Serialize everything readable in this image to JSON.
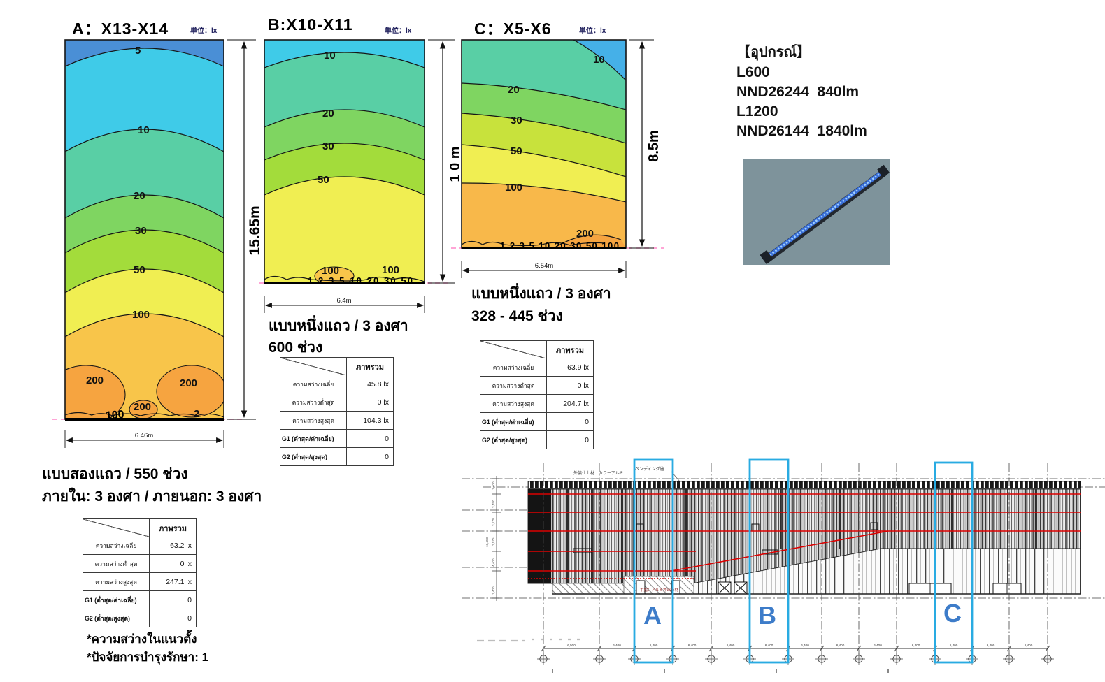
{
  "panels": {
    "a": {
      "title": "A：X13-X14",
      "unit": "単位：lx",
      "height_label": "15.65m",
      "width_label": "6.46m",
      "labels": {
        "c5": "5",
        "c10": "10",
        "c20": "20",
        "c30": "30",
        "c50": "50",
        "c100": "100",
        "b200_left": "200",
        "b200_right": "200",
        "b200_mid": "200",
        "floor_smudge": "100",
        "floor_right": "2"
      }
    },
    "b": {
      "title": "B:X10-X11",
      "unit": "単位：lx",
      "height_label": "1 0 m",
      "width_label": "6.4m",
      "labels": {
        "c10": "10",
        "c20": "20",
        "c30": "30",
        "c50": "50",
        "b100": "100",
        "r100": "100",
        "floor": "1 2 3 5 10 20 30 50"
      },
      "caption1": "แบบหนึ่งแถว / 3 องศา",
      "caption2": "600 ช่วง"
    },
    "c": {
      "title": "C：X5-X6",
      "unit": "単位：lx",
      "height_label": "8.5m",
      "width_label": "6.54m",
      "labels": {
        "c10": "10",
        "c20": "20",
        "c30": "30",
        "c50": "50",
        "c100": "100",
        "c200": "200",
        "floor": "1 2 3 5 10 20 30 50 100"
      },
      "caption1": "แบบหนึ่งแถว / 3 องศา",
      "caption2": "328 - 445 ช่วง"
    }
  },
  "captions_a": {
    "line1": "แบบสองแถว / 550 ช่วง",
    "line2": "ภายใน: 3 องศา / ภายนอก: 3 องศา"
  },
  "footnotes": {
    "line1": "*ความสว่างในแนวตั้ง",
    "line2": "*ปัจจัยการบำรุงรักษา: 1"
  },
  "equipment": {
    "heading": "【อุปกรณ์】",
    "line1": "L600",
    "line2": "NND26244  840lm",
    "line3": "L1200",
    "line4": "NND26144  1840lm"
  },
  "tables": {
    "header": "ภาพรวม",
    "a": {
      "rows": [
        {
          "label": "ความสว่างเฉลี่ย",
          "value": "63.2 lx"
        },
        {
          "label": "ความสว่างต่ำสุด",
          "value": "0 lx"
        },
        {
          "label": "ความสว่างสูงสุด",
          "value": "247.1 lx"
        },
        {
          "label": "G1 (ต่ำสุด/ค่าเฉลี่ย)",
          "value": "0"
        },
        {
          "label": "G2 (ต่ำสุด/สูงสุด)",
          "value": "0"
        }
      ]
    },
    "b": {
      "rows": [
        {
          "label": "ความสว่างเฉลี่ย",
          "value": "45.8 lx"
        },
        {
          "label": "ความสว่างต่ำสุด",
          "value": "0 lx"
        },
        {
          "label": "ความสว่างสูงสุด",
          "value": "104.3 lx"
        },
        {
          "label": "G1 (ต่ำสุด/ค่าเฉลี่ย)",
          "value": "0"
        },
        {
          "label": "G2 (ต่ำสุด/สูงสุด)",
          "value": "0"
        }
      ]
    },
    "c": {
      "rows": [
        {
          "label": "ความสว่างเฉลี่ย",
          "value": "63.9 lx"
        },
        {
          "label": "ความสว่างต่ำสุด",
          "value": "0 lx"
        },
        {
          "label": "ความสว่างสูงสุด",
          "value": "204.7 lx"
        },
        {
          "label": "G1 (ต่ำสุด/ค่าเฉลี่ย)",
          "value": "0"
        },
        {
          "label": "G2 (ต่ำสุด/สูงสุด)",
          "value": "0"
        }
      ]
    }
  },
  "elevation": {
    "annotation_left": "外装仕上材：カラーアルミ",
    "annotation_right": "ペンディング施工",
    "annotation_mid": "手摺：アルミ押出形材",
    "zone_a": "A",
    "zone_b": "B",
    "zone_c": "C",
    "dims": [
      "6,500",
      "6,400",
      "6,400",
      "6,400",
      "6,400",
      "6,400",
      "6,400",
      "6,400",
      "6,400",
      "6,400",
      "6,400",
      "6,400",
      "6,400"
    ],
    "v_dims": [
      "1,400",
      "3,450",
      "3,175",
      "2,575",
      "4,400",
      "1,400"
    ],
    "v_dim_total": "10,450"
  },
  "colors": {
    "band_lt5": "#4a8fd6",
    "band_5_10": "#3fcbe8",
    "band_10_20": "#59cfa5",
    "band_20_30": "#7fd561",
    "band_30_50": "#a3dc3b",
    "band_50_100": "#f0ee52",
    "band_100_200": "#f8c54a",
    "band_gt200": "#f6a440",
    "zone_box_blue": "#29abe2",
    "zone_letter_blue": "#3d7cc9",
    "red_line": "#dd0000",
    "floor_pink": "#ff87c8"
  },
  "chart_data": [
    {
      "type": "heatmap",
      "subtype": "illuminance-contour",
      "panel": "A",
      "section": "X13-X14",
      "unit": "lx",
      "area_width_m": 6.46,
      "area_height_m": 15.65,
      "contour_levels_lx": [
        5,
        10,
        20,
        30,
        50,
        100,
        200
      ],
      "stats": {
        "average_lx": 63.2,
        "min_lx": 0,
        "max_lx": 247.1,
        "G1_min_over_avg": 0,
        "G2_min_over_max": 0
      },
      "config": "แบบสองแถว / 550 ช่วง, ภายใน: 3 องศา / ภายนอก: 3 องศา"
    },
    {
      "type": "heatmap",
      "subtype": "illuminance-contour",
      "panel": "B",
      "section": "X10-X11",
      "unit": "lx",
      "area_width_m": 6.4,
      "area_height_m": 10,
      "contour_levels_lx": [
        1,
        2,
        3,
        5,
        10,
        20,
        30,
        50,
        100
      ],
      "stats": {
        "average_lx": 45.8,
        "min_lx": 0,
        "max_lx": 104.3,
        "G1_min_over_avg": 0,
        "G2_min_over_max": 0
      },
      "config": "แบบหนึ่งแถว / 3 องศา, 600 ช่วง"
    },
    {
      "type": "heatmap",
      "subtype": "illuminance-contour",
      "panel": "C",
      "section": "X5-X6",
      "unit": "lx",
      "area_width_m": 6.54,
      "area_height_m": 8.5,
      "contour_levels_lx": [
        1,
        2,
        3,
        5,
        10,
        20,
        30,
        50,
        100,
        200
      ],
      "stats": {
        "average_lx": 63.9,
        "min_lx": 0,
        "max_lx": 204.7,
        "G1_min_over_avg": 0,
        "G2_min_over_max": 0
      },
      "config": "แบบหนึ่งแถว / 3 องศา, 328 - 445 ช่วง"
    }
  ]
}
